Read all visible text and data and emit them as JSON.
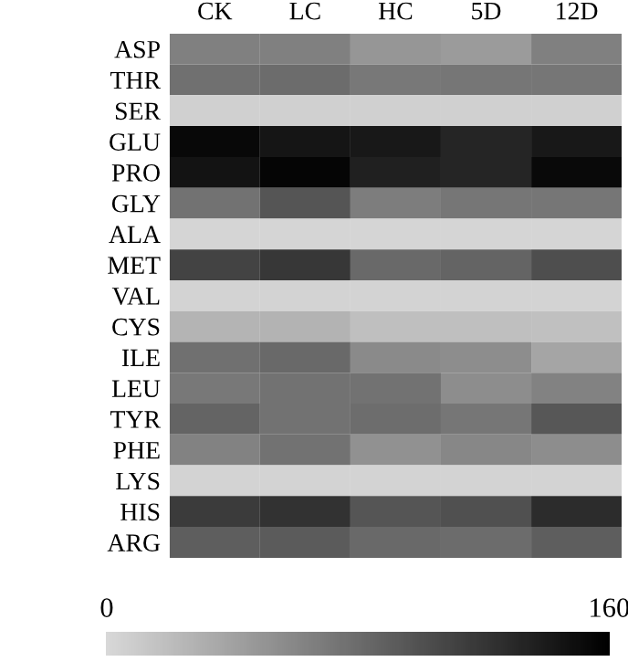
{
  "chart_data": {
    "type": "heatmap",
    "categories": [
      "CK",
      "LC",
      "HC",
      "5D",
      "12D"
    ],
    "y_categories": [
      "ASP",
      "THR",
      "SER",
      "GLU",
      "PRO",
      "GLY",
      "ALA",
      "MET",
      "VAL",
      "CYS",
      "ILE",
      "LEU",
      "TYR",
      "PHE",
      "LYS",
      "HIS",
      "ARG"
    ],
    "cells": [
      [
        65,
        65,
        49,
        45,
        65
      ],
      [
        77,
        80,
        71,
        73,
        73
      ],
      [
        6,
        6,
        6,
        6,
        6
      ],
      [
        154,
        144,
        142,
        132,
        142
      ],
      [
        145,
        156,
        136,
        132,
        153
      ],
      [
        75,
        97,
        67,
        73,
        73
      ],
      [
        3,
        3,
        3,
        3,
        3
      ],
      [
        110,
        119,
        82,
        86,
        102
      ],
      [
        4,
        4,
        4,
        4,
        4
      ],
      [
        27,
        28,
        19,
        19,
        18
      ],
      [
        77,
        82,
        58,
        56,
        38
      ],
      [
        71,
        75,
        75,
        56,
        64
      ],
      [
        86,
        75,
        79,
        73,
        95
      ],
      [
        64,
        75,
        53,
        60,
        55
      ],
      [
        4,
        4,
        4,
        4,
        4
      ],
      [
        116,
        123,
        97,
        101,
        127
      ],
      [
        90,
        93,
        82,
        80,
        90
      ]
    ],
    "clim": [
      0,
      160
    ],
    "cticks": [
      0,
      160
    ]
  }
}
